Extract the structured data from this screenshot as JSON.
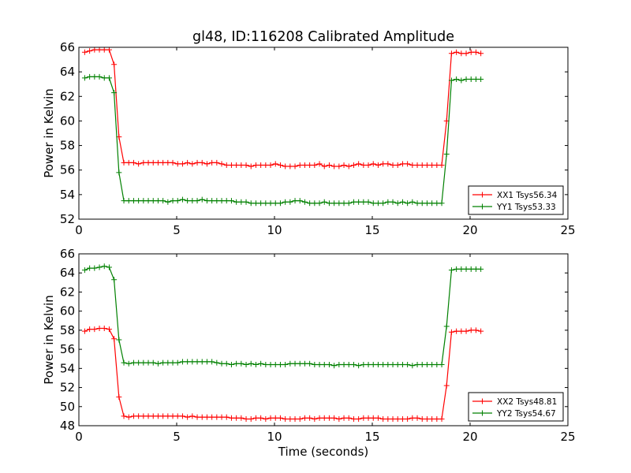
{
  "figure_title": "gl48, ID:116208 Calibrated Amplitude",
  "colors": {
    "series_1": "#ff0000",
    "series_2": "#008000",
    "axes": "#000000",
    "background": "#ffffff"
  },
  "chart_data": [
    {
      "type": "line",
      "title": "gl48, ID:116208 Calibrated Amplitude",
      "xlabel": "",
      "ylabel": "Power in Kelvin",
      "xlim": [
        0,
        25
      ],
      "ylim": [
        52,
        66
      ],
      "xticks": [
        "0",
        "5",
        "10",
        "15",
        "20",
        "25"
      ],
      "yticks": [
        "52",
        "54",
        "56",
        "58",
        "60",
        "62",
        "64",
        "66"
      ],
      "grid": false,
      "legend_position": "lower-right",
      "series": [
        {
          "name": "XX1 Tsys56.34",
          "color": "#ff0000",
          "marker": "+",
          "x": [
            0.3,
            0.55,
            0.8,
            1.05,
            1.3,
            1.55,
            1.8,
            2.05,
            2.3,
            2.55,
            2.8,
            3.05,
            3.3,
            3.55,
            3.8,
            4.05,
            4.3,
            4.55,
            4.8,
            5.05,
            5.3,
            5.55,
            5.8,
            6.05,
            6.3,
            6.55,
            6.8,
            7.05,
            7.3,
            7.55,
            7.8,
            8.05,
            8.3,
            8.55,
            8.8,
            9.05,
            9.3,
            9.55,
            9.8,
            10.05,
            10.3,
            10.55,
            10.8,
            11.05,
            11.3,
            11.55,
            11.8,
            12.05,
            12.3,
            12.55,
            12.8,
            13.05,
            13.3,
            13.55,
            13.8,
            14.05,
            14.3,
            14.55,
            14.8,
            15.05,
            15.3,
            15.55,
            15.8,
            16.05,
            16.3,
            16.55,
            16.8,
            17.05,
            17.3,
            17.55,
            17.8,
            18.05,
            18.3,
            18.55,
            18.8,
            19.05,
            19.3,
            19.55,
            19.8,
            20.05,
            20.3,
            20.55
          ],
          "values": [
            65.6,
            65.7,
            65.8,
            65.8,
            65.8,
            65.8,
            64.6,
            58.7,
            56.6,
            56.6,
            56.6,
            56.5,
            56.6,
            56.6,
            56.6,
            56.6,
            56.6,
            56.6,
            56.6,
            56.5,
            56.5,
            56.6,
            56.5,
            56.6,
            56.6,
            56.5,
            56.6,
            56.6,
            56.5,
            56.4,
            56.4,
            56.4,
            56.4,
            56.4,
            56.3,
            56.4,
            56.4,
            56.4,
            56.4,
            56.5,
            56.4,
            56.3,
            56.3,
            56.3,
            56.4,
            56.4,
            56.4,
            56.4,
            56.5,
            56.3,
            56.4,
            56.3,
            56.3,
            56.4,
            56.3,
            56.4,
            56.5,
            56.4,
            56.4,
            56.5,
            56.4,
            56.5,
            56.5,
            56.4,
            56.4,
            56.5,
            56.5,
            56.4,
            56.4,
            56.4,
            56.4,
            56.4,
            56.4,
            56.4,
            60.0,
            65.5,
            65.6,
            65.5,
            65.5,
            65.6,
            65.6,
            65.5
          ]
        },
        {
          "name": "YY1 Tsys53.33",
          "color": "#008000",
          "marker": "+",
          "x": [
            0.3,
            0.55,
            0.8,
            1.05,
            1.3,
            1.55,
            1.8,
            2.05,
            2.3,
            2.55,
            2.8,
            3.05,
            3.3,
            3.55,
            3.8,
            4.05,
            4.3,
            4.55,
            4.8,
            5.05,
            5.3,
            5.55,
            5.8,
            6.05,
            6.3,
            6.55,
            6.8,
            7.05,
            7.3,
            7.55,
            7.8,
            8.05,
            8.3,
            8.55,
            8.8,
            9.05,
            9.3,
            9.55,
            9.8,
            10.05,
            10.3,
            10.55,
            10.8,
            11.05,
            11.3,
            11.55,
            11.8,
            12.05,
            12.3,
            12.55,
            12.8,
            13.05,
            13.3,
            13.55,
            13.8,
            14.05,
            14.3,
            14.55,
            14.8,
            15.05,
            15.3,
            15.55,
            15.8,
            16.05,
            16.3,
            16.55,
            16.8,
            17.05,
            17.3,
            17.55,
            17.8,
            18.05,
            18.3,
            18.55,
            18.8,
            19.05,
            19.3,
            19.55,
            19.8,
            20.05,
            20.3,
            20.55
          ],
          "values": [
            63.5,
            63.6,
            63.6,
            63.6,
            63.5,
            63.5,
            62.3,
            55.8,
            53.5,
            53.5,
            53.5,
            53.5,
            53.5,
            53.5,
            53.5,
            53.5,
            53.5,
            53.4,
            53.5,
            53.5,
            53.6,
            53.5,
            53.5,
            53.5,
            53.6,
            53.5,
            53.5,
            53.5,
            53.5,
            53.5,
            53.5,
            53.4,
            53.4,
            53.4,
            53.3,
            53.3,
            53.3,
            53.3,
            53.3,
            53.3,
            53.3,
            53.4,
            53.4,
            53.5,
            53.5,
            53.4,
            53.3,
            53.3,
            53.3,
            53.4,
            53.3,
            53.3,
            53.3,
            53.3,
            53.3,
            53.4,
            53.4,
            53.4,
            53.4,
            53.3,
            53.3,
            53.3,
            53.4,
            53.4,
            53.3,
            53.4,
            53.3,
            53.4,
            53.3,
            53.3,
            53.3,
            53.3,
            53.3,
            53.3,
            57.3,
            63.3,
            63.4,
            63.3,
            63.4,
            63.4,
            63.4,
            63.4
          ]
        }
      ]
    },
    {
      "type": "line",
      "title": "",
      "xlabel": "Time (seconds)",
      "ylabel": "Power in Kelvin",
      "xlim": [
        0,
        25
      ],
      "ylim": [
        48,
        66
      ],
      "xticks": [
        "0",
        "5",
        "10",
        "15",
        "20",
        "25"
      ],
      "yticks": [
        "48",
        "50",
        "52",
        "54",
        "56",
        "58",
        "60",
        "62",
        "64",
        "66"
      ],
      "grid": false,
      "legend_position": "lower-right",
      "series": [
        {
          "name": "XX2 Tsys48.81",
          "color": "#ff0000",
          "marker": "+",
          "x": [
            0.3,
            0.55,
            0.8,
            1.05,
            1.3,
            1.55,
            1.8,
            2.05,
            2.3,
            2.55,
            2.8,
            3.05,
            3.3,
            3.55,
            3.8,
            4.05,
            4.3,
            4.55,
            4.8,
            5.05,
            5.3,
            5.55,
            5.8,
            6.05,
            6.3,
            6.55,
            6.8,
            7.05,
            7.3,
            7.55,
            7.8,
            8.05,
            8.3,
            8.55,
            8.8,
            9.05,
            9.3,
            9.55,
            9.8,
            10.05,
            10.3,
            10.55,
            10.8,
            11.05,
            11.3,
            11.55,
            11.8,
            12.05,
            12.3,
            12.55,
            12.8,
            13.05,
            13.3,
            13.55,
            13.8,
            14.05,
            14.3,
            14.55,
            14.8,
            15.05,
            15.3,
            15.55,
            15.8,
            16.05,
            16.3,
            16.55,
            16.8,
            17.05,
            17.3,
            17.55,
            17.8,
            18.05,
            18.3,
            18.55,
            18.8,
            19.05,
            19.3,
            19.55,
            19.8,
            20.05,
            20.3,
            20.55
          ],
          "values": [
            57.9,
            58.1,
            58.1,
            58.2,
            58.2,
            58.1,
            57.1,
            51.0,
            49.0,
            48.9,
            49.0,
            49.0,
            49.0,
            49.0,
            49.0,
            49.0,
            49.0,
            49.0,
            49.0,
            49.0,
            49.0,
            48.9,
            49.0,
            48.9,
            48.9,
            48.9,
            48.9,
            48.9,
            48.9,
            48.9,
            48.8,
            48.8,
            48.8,
            48.7,
            48.7,
            48.8,
            48.8,
            48.7,
            48.8,
            48.8,
            48.8,
            48.7,
            48.7,
            48.7,
            48.7,
            48.8,
            48.8,
            48.7,
            48.8,
            48.8,
            48.8,
            48.8,
            48.7,
            48.8,
            48.8,
            48.7,
            48.7,
            48.8,
            48.8,
            48.8,
            48.8,
            48.7,
            48.7,
            48.7,
            48.7,
            48.7,
            48.7,
            48.8,
            48.8,
            48.7,
            48.7,
            48.7,
            48.7,
            48.7,
            52.2,
            57.8,
            57.9,
            57.9,
            57.9,
            58.0,
            58.0,
            57.9
          ]
        },
        {
          "name": "YY2 Tsys54.67",
          "color": "#008000",
          "marker": "+",
          "x": [
            0.3,
            0.55,
            0.8,
            1.05,
            1.3,
            1.55,
            1.8,
            2.05,
            2.3,
            2.55,
            2.8,
            3.05,
            3.3,
            3.55,
            3.8,
            4.05,
            4.3,
            4.55,
            4.8,
            5.05,
            5.3,
            5.55,
            5.8,
            6.05,
            6.3,
            6.55,
            6.8,
            7.05,
            7.3,
            7.55,
            7.8,
            8.05,
            8.3,
            8.55,
            8.8,
            9.05,
            9.3,
            9.55,
            9.8,
            10.05,
            10.3,
            10.55,
            10.8,
            11.05,
            11.3,
            11.55,
            11.8,
            12.05,
            12.3,
            12.55,
            12.8,
            13.05,
            13.3,
            13.55,
            13.8,
            14.05,
            14.3,
            14.55,
            14.8,
            15.05,
            15.3,
            15.55,
            15.8,
            16.05,
            16.3,
            16.55,
            16.8,
            17.05,
            17.3,
            17.55,
            17.8,
            18.05,
            18.3,
            18.55,
            18.8,
            19.05,
            19.3,
            19.55,
            19.8,
            20.05,
            20.3,
            20.55
          ],
          "values": [
            64.3,
            64.5,
            64.5,
            64.6,
            64.7,
            64.6,
            63.3,
            57.0,
            54.6,
            54.5,
            54.6,
            54.6,
            54.6,
            54.6,
            54.6,
            54.5,
            54.6,
            54.6,
            54.6,
            54.6,
            54.7,
            54.7,
            54.7,
            54.7,
            54.7,
            54.7,
            54.7,
            54.6,
            54.5,
            54.5,
            54.4,
            54.5,
            54.5,
            54.4,
            54.5,
            54.4,
            54.5,
            54.4,
            54.4,
            54.4,
            54.4,
            54.4,
            54.5,
            54.5,
            54.5,
            54.5,
            54.5,
            54.4,
            54.4,
            54.4,
            54.4,
            54.3,
            54.4,
            54.4,
            54.4,
            54.4,
            54.3,
            54.4,
            54.4,
            54.4,
            54.4,
            54.4,
            54.4,
            54.4,
            54.4,
            54.4,
            54.4,
            54.3,
            54.4,
            54.4,
            54.4,
            54.4,
            54.4,
            54.4,
            58.4,
            64.3,
            64.4,
            64.4,
            64.4,
            64.4,
            64.4,
            64.4
          ]
        }
      ]
    }
  ]
}
